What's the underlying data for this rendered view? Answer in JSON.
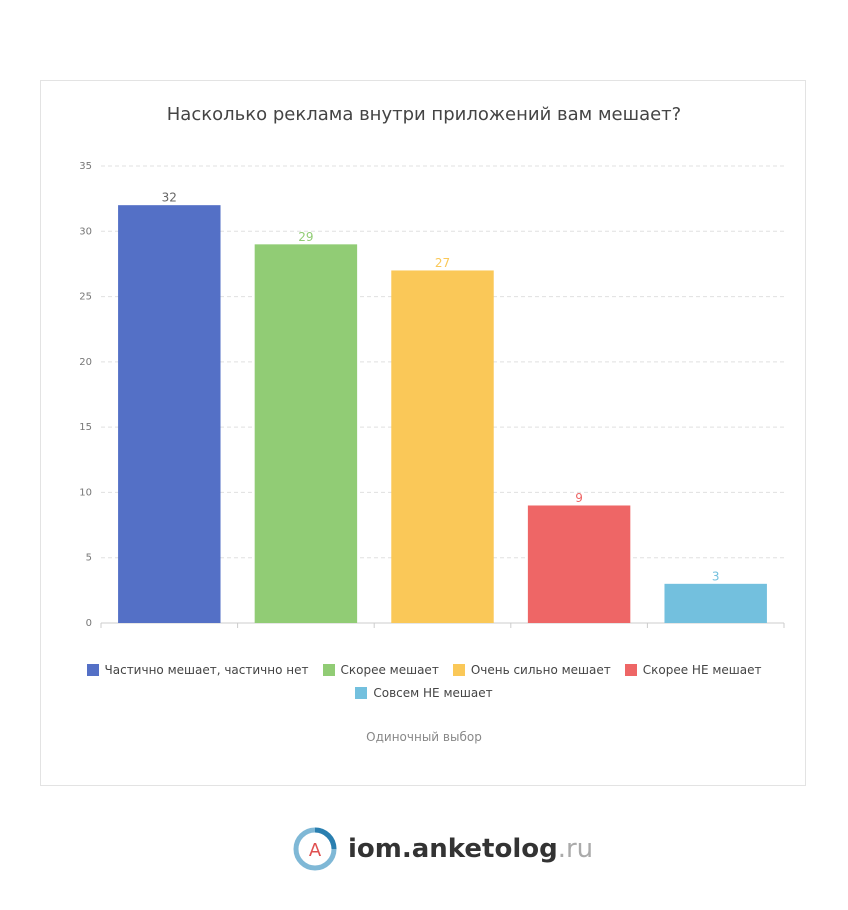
{
  "chart_data": {
    "type": "bar",
    "title": "Насколько реклама внутри приложений вам мешает?",
    "categories": [
      "Частично мешает, частично нет",
      "Скорее мешает",
      "Очень сильно мешает",
      "Скорее НЕ мешает",
      "Совсем НЕ мешает"
    ],
    "values": [
      32,
      29,
      27,
      9,
      3
    ],
    "colors": [
      "#5470c6",
      "#91cc75",
      "#fac858",
      "#ee6666",
      "#73c0de"
    ],
    "ylim": [
      0,
      35
    ],
    "yticks": [
      0,
      5,
      10,
      15,
      20,
      25,
      30,
      35
    ],
    "grid": true,
    "note": "Одиночный выбор"
  },
  "footer": {
    "logo_letter": "A",
    "brand": "iom.anketolog",
    "domain": ".ru"
  }
}
